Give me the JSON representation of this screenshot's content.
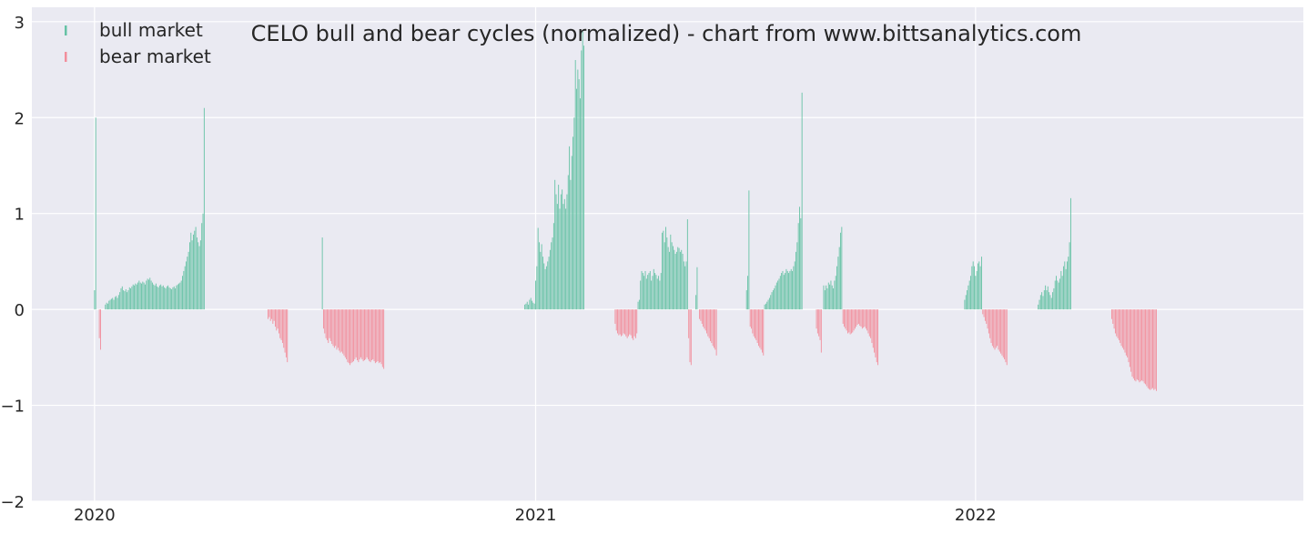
{
  "chart_data": {
    "type": "bar",
    "title": "CELO bull and bear cycles (normalized)  - chart from www.bittsanalytics.com",
    "xlabel": "",
    "ylabel": "",
    "xlim": [
      "2019-11-10",
      "2022-09-30"
    ],
    "ylim": [
      -2,
      3.15
    ],
    "x_ticks": [
      "2020",
      "2021",
      "2022"
    ],
    "y_ticks": [
      "−2",
      "−1",
      "0",
      "1",
      "2",
      "3"
    ],
    "grid": true,
    "legend_position": "top-left",
    "colors": {
      "bull": "#66c2a5",
      "bear": "#f28e9c",
      "background": "#eaeaf2",
      "grid": "#ffffff",
      "text": "#262626"
    },
    "series": [
      {
        "name": "bull market",
        "segments": [
          {
            "start": "2020-01-01",
            "values": [
              0.2,
              2.0
            ]
          },
          {
            "start": "2020-01-10",
            "values": [
              0.05,
              0.07,
              0.06,
              0.09,
              0.1,
              0.11,
              0.12,
              0.1,
              0.13,
              0.14,
              0.12,
              0.15,
              0.18,
              0.22,
              0.24,
              0.2,
              0.19,
              0.21,
              0.18,
              0.2,
              0.23,
              0.22,
              0.24,
              0.26,
              0.25,
              0.27,
              0.26,
              0.28,
              0.3,
              0.28,
              0.27,
              0.29,
              0.28,
              0.26,
              0.3,
              0.32,
              0.31,
              0.33,
              0.3,
              0.28,
              0.26,
              0.25,
              0.27,
              0.24,
              0.23,
              0.25,
              0.26,
              0.24,
              0.25,
              0.23,
              0.22,
              0.24,
              0.25,
              0.23,
              0.22,
              0.21,
              0.23,
              0.24,
              0.22,
              0.25,
              0.26,
              0.27,
              0.28,
              0.3,
              0.35,
              0.4,
              0.45,
              0.5,
              0.55,
              0.6,
              0.7,
              0.8,
              0.72,
              0.78,
              0.82,
              0.86,
              0.75,
              0.7,
              0.66,
              0.72,
              0.9,
              1.0,
              2.1
            ]
          },
          {
            "start": "2020-07-08",
            "values": [
              0.75
            ]
          },
          {
            "start": "2020-12-23",
            "values": [
              0.05,
              0.06,
              0.08,
              0.05,
              0.1,
              0.12,
              0.09,
              0.07,
              0.06,
              0.3,
              0.45,
              0.85,
              0.7,
              0.6,
              0.68,
              0.55,
              0.48,
              0.42,
              0.45,
              0.5,
              0.55,
              0.62,
              0.7,
              0.75,
              0.9,
              1.35,
              1.2,
              1.1,
              1.3,
              1.05,
              1.2,
              1.25,
              1.1,
              1.15,
              1.05,
              1.2,
              1.4,
              1.7,
              1.35,
              1.6,
              1.8,
              2.0,
              2.6,
              2.3,
              2.5,
              2.4,
              2.2,
              2.7,
              2.9,
              2.75
            ]
          },
          {
            "start": "2021-03-27",
            "values": [
              0.08,
              0.1,
              0.3,
              0.4,
              0.38,
              0.35,
              0.4,
              0.32,
              0.36,
              0.38,
              0.4,
              0.3,
              0.35,
              0.42,
              0.38,
              0.36,
              0.32,
              0.35,
              0.3,
              0.38,
              0.8,
              0.82,
              0.7,
              0.86,
              0.75,
              0.65,
              0.6,
              0.78,
              0.7,
              0.66,
              0.62,
              0.58,
              0.6,
              0.65,
              0.64,
              0.6,
              0.62,
              0.58,
              0.5,
              0.45,
              0.5,
              0.94
            ]
          },
          {
            "start": "2021-05-14",
            "values": [
              0.15,
              0.44
            ]
          },
          {
            "start": "2021-06-25",
            "values": [
              0.2,
              0.35,
              1.24
            ]
          },
          {
            "start": "2021-07-10",
            "values": [
              0.05,
              0.06,
              0.08,
              0.1,
              0.12,
              0.15,
              0.18,
              0.2,
              0.22,
              0.25,
              0.28,
              0.3,
              0.32,
              0.35,
              0.38,
              0.4,
              0.36,
              0.38,
              0.42,
              0.4,
              0.38,
              0.4,
              0.42,
              0.4,
              0.45,
              0.5,
              0.6,
              0.7,
              0.9,
              1.07,
              0.95,
              2.26
            ]
          },
          {
            "start": "2021-08-28",
            "values": [
              0.25,
              0.2,
              0.25,
              0.22,
              0.28,
              0.26,
              0.3,
              0.25,
              0.22,
              0.3,
              0.35,
              0.45,
              0.55,
              0.65,
              0.8,
              0.86
            ]
          },
          {
            "start": "2021-12-23",
            "values": [
              0.1,
              0.15,
              0.2,
              0.25,
              0.3,
              0.35,
              0.45,
              0.5,
              0.45,
              0.35,
              0.4,
              0.48,
              0.5,
              0.45,
              0.55
            ]
          },
          {
            "start": "2022-02-22",
            "values": [
              0.05,
              0.1,
              0.15,
              0.18,
              0.14,
              0.2,
              0.25,
              0.2,
              0.24,
              0.18,
              0.15,
              0.12,
              0.18,
              0.22,
              0.3,
              0.35,
              0.3,
              0.28,
              0.32,
              0.4,
              0.35,
              0.45,
              0.5,
              0.42,
              0.5,
              0.55,
              0.7,
              1.16
            ]
          }
        ]
      },
      {
        "name": "bear market",
        "segments": [
          {
            "start": "2020-01-05",
            "values": [
              -0.3,
              -0.42
            ]
          },
          {
            "start": "2020-05-24",
            "values": [
              -0.1,
              -0.08,
              -0.12,
              -0.1,
              -0.15,
              -0.12,
              -0.18,
              -0.22,
              -0.2,
              -0.25,
              -0.3,
              -0.32,
              -0.35,
              -0.4,
              -0.45,
              -0.5,
              -0.55
            ]
          },
          {
            "start": "2020-07-09",
            "values": [
              -0.2,
              -0.25,
              -0.3,
              -0.32,
              -0.35,
              -0.3,
              -0.33,
              -0.36,
              -0.38,
              -0.4,
              -0.38,
              -0.42,
              -0.4,
              -0.43,
              -0.45,
              -0.44,
              -0.46,
              -0.48,
              -0.5,
              -0.52,
              -0.55,
              -0.56,
              -0.58,
              -0.56,
              -0.55,
              -0.54,
              -0.52,
              -0.5,
              -0.53,
              -0.55,
              -0.52,
              -0.5,
              -0.52,
              -0.54,
              -0.53,
              -0.52,
              -0.5,
              -0.52,
              -0.54,
              -0.55,
              -0.53,
              -0.52,
              -0.54,
              -0.56,
              -0.55,
              -0.54,
              -0.56,
              -0.55,
              -0.57,
              -0.6,
              -0.62
            ]
          },
          {
            "start": "2021-03-08",
            "values": [
              -0.15,
              -0.22,
              -0.25,
              -0.27,
              -0.26,
              -0.28,
              -0.27,
              -0.25,
              -0.26,
              -0.28,
              -0.3,
              -0.28,
              -0.26,
              -0.27,
              -0.3,
              -0.32,
              -0.28,
              -0.3,
              -0.25
            ]
          },
          {
            "start": "2021-05-08",
            "values": [
              -0.3,
              -0.55,
              -0.58
            ]
          },
          {
            "start": "2021-05-17",
            "values": [
              -0.1,
              -0.12,
              -0.15,
              -0.18,
              -0.2,
              -0.22,
              -0.25,
              -0.28,
              -0.3,
              -0.33,
              -0.35,
              -0.38,
              -0.4,
              -0.42,
              -0.48
            ]
          },
          {
            "start": "2021-06-28",
            "values": [
              -0.18,
              -0.2,
              -0.25,
              -0.28,
              -0.3,
              -0.32,
              -0.35,
              -0.38,
              -0.4,
              -0.42,
              -0.45,
              -0.48
            ]
          },
          {
            "start": "2021-08-22",
            "values": [
              -0.2,
              -0.25,
              -0.28,
              -0.32,
              -0.45
            ]
          },
          {
            "start": "2021-09-13",
            "values": [
              -0.15,
              -0.18,
              -0.2,
              -0.22,
              -0.25,
              -0.24,
              -0.26,
              -0.25,
              -0.24,
              -0.22,
              -0.2,
              -0.18,
              -0.16,
              -0.15,
              -0.17,
              -0.18,
              -0.2,
              -0.19,
              -0.18,
              -0.2,
              -0.22,
              -0.25,
              -0.28,
              -0.3,
              -0.35,
              -0.4,
              -0.45,
              -0.5,
              -0.55,
              -0.58
            ]
          },
          {
            "start": "2022-01-07",
            "values": [
              -0.05,
              -0.08,
              -0.12,
              -0.15,
              -0.2,
              -0.25,
              -0.3,
              -0.35,
              -0.38,
              -0.4,
              -0.42,
              -0.4,
              -0.38,
              -0.42,
              -0.44,
              -0.46,
              -0.48,
              -0.5,
              -0.52,
              -0.55,
              -0.58
            ]
          },
          {
            "start": "2022-04-24",
            "values": [
              -0.1,
              -0.15,
              -0.2,
              -0.25,
              -0.28,
              -0.3,
              -0.32,
              -0.35,
              -0.38,
              -0.4,
              -0.42,
              -0.45,
              -0.48,
              -0.5,
              -0.55,
              -0.6,
              -0.65,
              -0.7,
              -0.72,
              -0.74,
              -0.75,
              -0.73,
              -0.74,
              -0.76,
              -0.75,
              -0.74,
              -0.75,
              -0.77,
              -0.78,
              -0.8,
              -0.82,
              -0.83,
              -0.84,
              -0.83,
              -0.82,
              -0.84,
              -0.83,
              -0.85
            ]
          }
        ]
      }
    ]
  }
}
